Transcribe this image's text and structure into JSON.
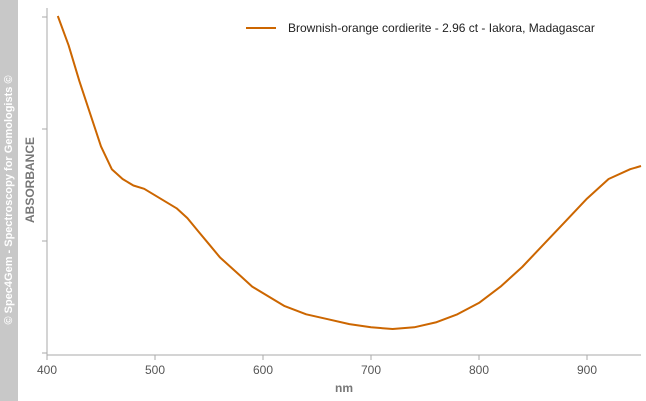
{
  "watermark": "© Spec4Gem - Spectroscopy for Gemologists ©",
  "colors": {
    "series": "#cc6600",
    "axis": "#aaaaaa",
    "sidebar": "#c8c8c8"
  },
  "chart_data": {
    "type": "line",
    "xlabel": "nm",
    "ylabel": "ABSORBANCE",
    "xlim": [
      400,
      950
    ],
    "ylim": [
      0,
      1
    ],
    "x_ticks": [
      400,
      500,
      600,
      700,
      800,
      900
    ],
    "y_tick_labels_shown": false,
    "grid": false,
    "legend_position": "top-right",
    "series": [
      {
        "name": "Brownish-orange cordierite - 2.96 ct -  Iakora, Madagascar",
        "color": "#cc6600",
        "x": [
          410,
          420,
          430,
          440,
          450,
          460,
          470,
          480,
          490,
          500,
          510,
          520,
          530,
          540,
          550,
          560,
          570,
          580,
          590,
          600,
          620,
          640,
          660,
          680,
          700,
          720,
          740,
          760,
          780,
          800,
          820,
          840,
          860,
          880,
          900,
          920,
          940,
          950
        ],
        "y": [
          1.0,
          0.91,
          0.8,
          0.7,
          0.6,
          0.53,
          0.5,
          0.48,
          0.47,
          0.45,
          0.43,
          0.41,
          0.38,
          0.34,
          0.3,
          0.26,
          0.23,
          0.2,
          0.17,
          0.15,
          0.11,
          0.085,
          0.07,
          0.055,
          0.045,
          0.04,
          0.045,
          0.06,
          0.085,
          0.12,
          0.17,
          0.23,
          0.3,
          0.37,
          0.44,
          0.5,
          0.53,
          0.54
        ]
      }
    ]
  }
}
